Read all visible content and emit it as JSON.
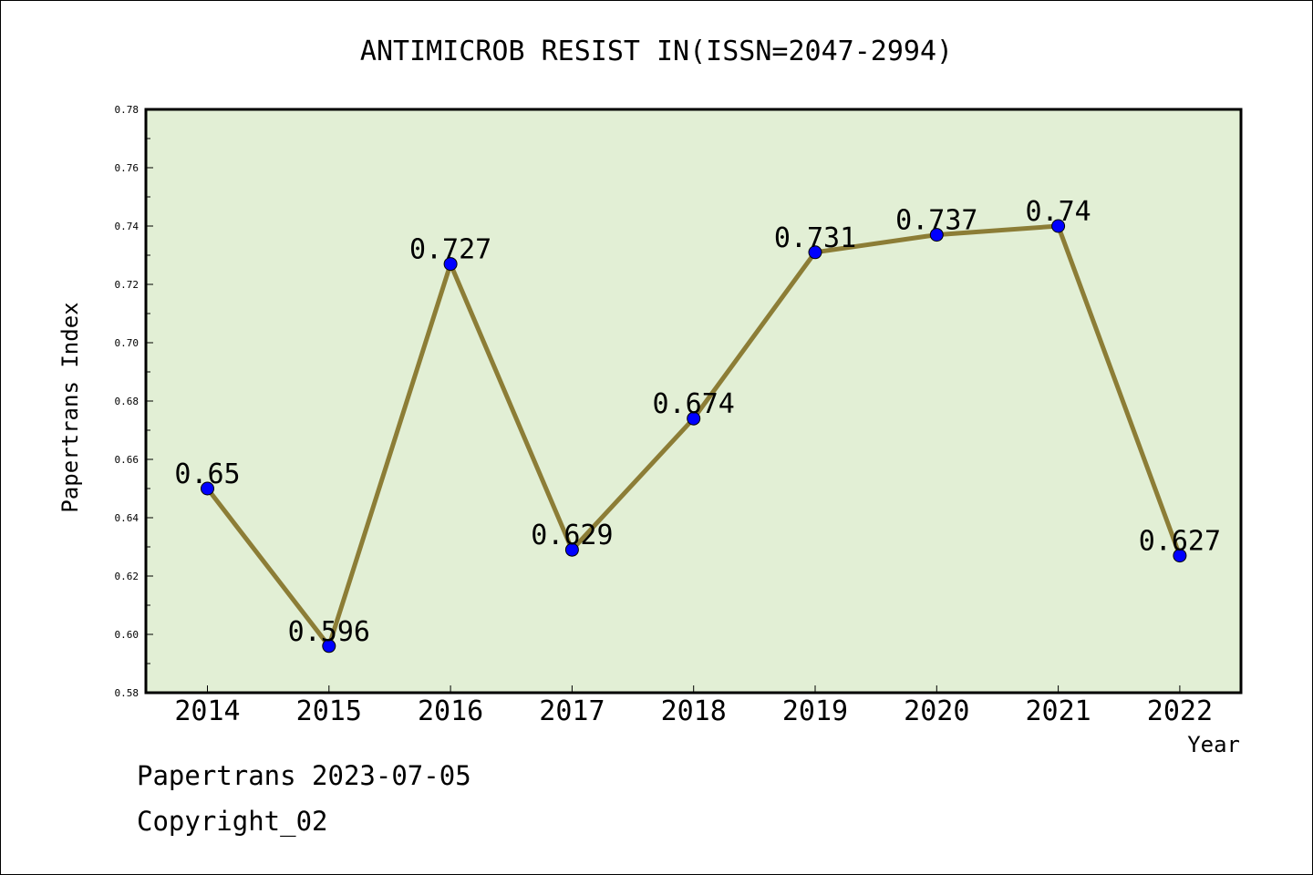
{
  "chart_data": {
    "type": "line",
    "title": "ANTIMICROB RESIST IN(ISSN=2047-2994)",
    "xlabel": "Year",
    "ylabel": "Papertrans Index",
    "categories": [
      "2014",
      "2015",
      "2016",
      "2017",
      "2018",
      "2019",
      "2020",
      "2021",
      "2022"
    ],
    "values": [
      0.65,
      0.596,
      0.727,
      0.629,
      0.674,
      0.731,
      0.737,
      0.74,
      0.627
    ],
    "data_labels": [
      "0.65",
      "0.596",
      "0.727",
      "0.629",
      "0.674",
      "0.731",
      "0.737",
      "0.74",
      "0.627"
    ],
    "ylim": [
      0.58,
      0.78
    ],
    "yticks": [
      "0.58",
      "0.60",
      "0.62",
      "0.64",
      "0.66",
      "0.68",
      "0.70",
      "0.72",
      "0.74",
      "0.76",
      "0.78"
    ],
    "grid": false,
    "colors": {
      "plot_background": "#e2efd5",
      "line": "#8c7d36",
      "marker": "#0000ff"
    }
  },
  "footer": {
    "date_line": "Papertrans 2023-07-05",
    "copyright": "Copyright_02"
  }
}
